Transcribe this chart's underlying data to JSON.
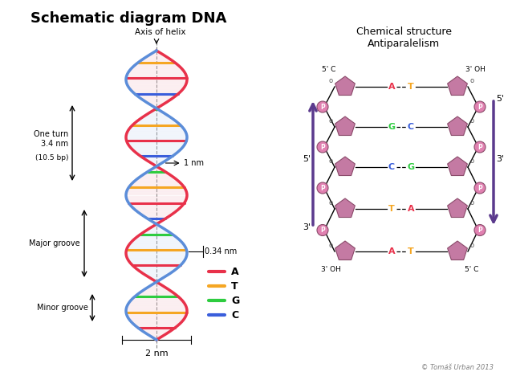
{
  "title": "Schematic diagram DNA",
  "bg_color": "#ffffff",
  "helix_left_color": "#e8314a",
  "helix_right_color": "#5b8dd9",
  "helix_accent": "#f5c0c0",
  "base_colors": {
    "A": "#e8314a",
    "T": "#f5a623",
    "G": "#2ecc40",
    "C": "#3a5edb"
  },
  "base_pairs": [
    [
      "A",
      "T"
    ],
    [
      "G",
      "C"
    ],
    [
      "C",
      "G"
    ],
    [
      "T",
      "A"
    ],
    [
      "A",
      "T"
    ]
  ],
  "sugar_color": "#c47aa3",
  "phosphate_color": "#e89dc0",
  "arrow_color": "#5b3a8d",
  "chem_title": "Chemical structure\nAntiparalelism",
  "legend_items": [
    {
      "label": "A",
      "color": "#e8314a"
    },
    {
      "label": "T",
      "color": "#f5a623"
    },
    {
      "label": "G",
      "color": "#2ecc40"
    },
    {
      "label": "C",
      "color": "#3a5edb"
    }
  ],
  "annotations": {
    "axis_label": "Axis of helix",
    "one_turn": "One turn\n3.4 nm",
    "bp": "(10.5 bp)",
    "one_nm": "1 nm",
    "major_groove": "Major groove",
    "minor_groove": "Minor groove",
    "two_nm": "2 nm",
    "dist": "0.34 nm"
  }
}
